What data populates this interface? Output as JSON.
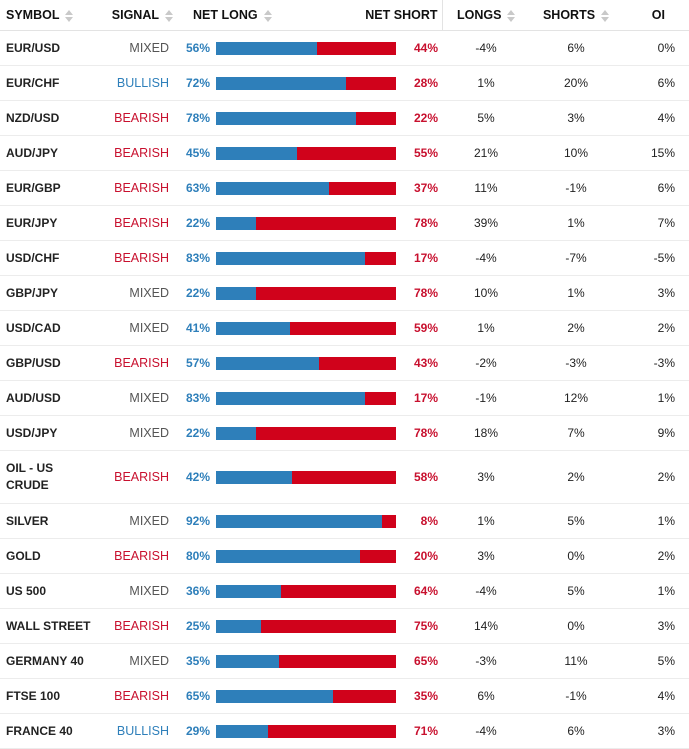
{
  "headers": {
    "symbol": "SYMBOL",
    "signal": "SIGNAL",
    "net_long": "NET LONG",
    "net_short": "NET SHORT",
    "longs": "LONGS",
    "shorts": "SHORTS",
    "oi": "OI"
  },
  "colors": {
    "long": "#2e7fba",
    "short": "#d0021b",
    "bearish": "#c8102e",
    "bullish": "#2e7fba",
    "mixed": "#555555"
  },
  "rows": [
    {
      "symbol": "EUR/USD",
      "signal": "MIXED",
      "net_long": "56%",
      "net_short": "44%",
      "longs": "-4%",
      "shorts": "6%",
      "oi": "0%",
      "long_pct": 56
    },
    {
      "symbol": "EUR/CHF",
      "signal": "BULLISH",
      "net_long": "72%",
      "net_short": "28%",
      "longs": "1%",
      "shorts": "20%",
      "oi": "6%",
      "long_pct": 72
    },
    {
      "symbol": "NZD/USD",
      "signal": "BEARISH",
      "net_long": "78%",
      "net_short": "22%",
      "longs": "5%",
      "shorts": "3%",
      "oi": "4%",
      "long_pct": 78
    },
    {
      "symbol": "AUD/JPY",
      "signal": "BEARISH",
      "net_long": "45%",
      "net_short": "55%",
      "longs": "21%",
      "shorts": "10%",
      "oi": "15%",
      "long_pct": 45
    },
    {
      "symbol": "EUR/GBP",
      "signal": "BEARISH",
      "net_long": "63%",
      "net_short": "37%",
      "longs": "11%",
      "shorts": "-1%",
      "oi": "6%",
      "long_pct": 63
    },
    {
      "symbol": "EUR/JPY",
      "signal": "BEARISH",
      "net_long": "22%",
      "net_short": "78%",
      "longs": "39%",
      "shorts": "1%",
      "oi": "7%",
      "long_pct": 22
    },
    {
      "symbol": "USD/CHF",
      "signal": "BEARISH",
      "net_long": "83%",
      "net_short": "17%",
      "longs": "-4%",
      "shorts": "-7%",
      "oi": "-5%",
      "long_pct": 83
    },
    {
      "symbol": "GBP/JPY",
      "signal": "MIXED",
      "net_long": "22%",
      "net_short": "78%",
      "longs": "10%",
      "shorts": "1%",
      "oi": "3%",
      "long_pct": 22
    },
    {
      "symbol": "USD/CAD",
      "signal": "MIXED",
      "net_long": "41%",
      "net_short": "59%",
      "longs": "1%",
      "shorts": "2%",
      "oi": "2%",
      "long_pct": 41
    },
    {
      "symbol": "GBP/USD",
      "signal": "BEARISH",
      "net_long": "57%",
      "net_short": "43%",
      "longs": "-2%",
      "shorts": "-3%",
      "oi": "-3%",
      "long_pct": 57
    },
    {
      "symbol": "AUD/USD",
      "signal": "MIXED",
      "net_long": "83%",
      "net_short": "17%",
      "longs": "-1%",
      "shorts": "12%",
      "oi": "1%",
      "long_pct": 83
    },
    {
      "symbol": "USD/JPY",
      "signal": "MIXED",
      "net_long": "22%",
      "net_short": "78%",
      "longs": "18%",
      "shorts": "7%",
      "oi": "9%",
      "long_pct": 22
    },
    {
      "symbol": "OIL - US CRUDE",
      "signal": "BEARISH",
      "net_long": "42%",
      "net_short": "58%",
      "longs": "3%",
      "shorts": "2%",
      "oi": "2%",
      "long_pct": 42
    },
    {
      "symbol": "SILVER",
      "signal": "MIXED",
      "net_long": "92%",
      "net_short": "8%",
      "longs": "1%",
      "shorts": "5%",
      "oi": "1%",
      "long_pct": 92
    },
    {
      "symbol": "GOLD",
      "signal": "BEARISH",
      "net_long": "80%",
      "net_short": "20%",
      "longs": "3%",
      "shorts": "0%",
      "oi": "2%",
      "long_pct": 80
    },
    {
      "symbol": "US 500",
      "signal": "MIXED",
      "net_long": "36%",
      "net_short": "64%",
      "longs": "-4%",
      "shorts": "5%",
      "oi": "1%",
      "long_pct": 36
    },
    {
      "symbol": "WALL STREET",
      "signal": "BEARISH",
      "net_long": "25%",
      "net_short": "75%",
      "longs": "14%",
      "shorts": "0%",
      "oi": "3%",
      "long_pct": 25
    },
    {
      "symbol": "GERMANY 40",
      "signal": "MIXED",
      "net_long": "35%",
      "net_short": "65%",
      "longs": "-3%",
      "shorts": "11%",
      "oi": "5%",
      "long_pct": 35
    },
    {
      "symbol": "FTSE 100",
      "signal": "BEARISH",
      "net_long": "65%",
      "net_short": "35%",
      "longs": "6%",
      "shorts": "-1%",
      "oi": "4%",
      "long_pct": 65
    },
    {
      "symbol": "FRANCE 40",
      "signal": "BULLISH",
      "net_long": "29%",
      "net_short": "71%",
      "longs": "-4%",
      "shorts": "6%",
      "oi": "3%",
      "long_pct": 29
    }
  ]
}
